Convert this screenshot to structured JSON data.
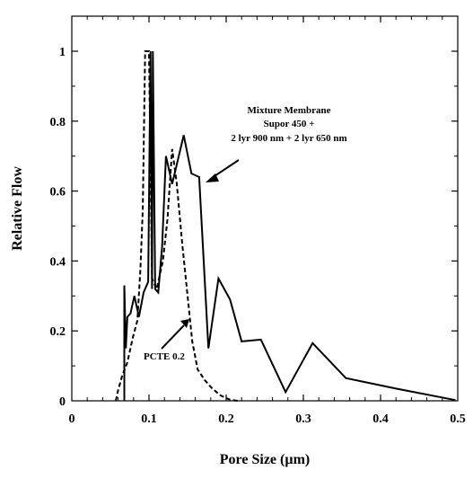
{
  "chart_data": {
    "type": "line",
    "title": "",
    "xlabel": "Pore Size (µm)",
    "ylabel": "Relative Flow",
    "xlim": [
      0,
      0.5
    ],
    "ylim": [
      0,
      1.1
    ],
    "x_ticks": [
      0,
      0.1,
      0.2,
      0.3,
      0.4,
      0.5
    ],
    "x_tick_labels": [
      "0",
      "0.1",
      "0.2",
      "0.3",
      "0.4",
      "0.5"
    ],
    "y_ticks": [
      0,
      0.2,
      0.4,
      0.6,
      0.8,
      1
    ],
    "y_tick_labels": [
      "0",
      "0.2",
      "0.4",
      "0.6",
      "0.8",
      "1"
    ],
    "grid": false,
    "legend": "none",
    "series": [
      {
        "name": "",
        "style": "solid",
        "color": "#000000",
        "points": [
          [
            0.068,
            0.0
          ],
          [
            0.068,
            0.33
          ],
          [
            0.07,
            0.15
          ],
          [
            0.072,
            0.24
          ],
          [
            0.076,
            0.25
          ],
          [
            0.081,
            0.3
          ],
          [
            0.087,
            0.24
          ],
          [
            0.093,
            0.31
          ],
          [
            0.099,
            0.34
          ],
          [
            0.102,
            1.0
          ],
          [
            0.104,
            0.32
          ],
          [
            0.105,
            1.0
          ],
          [
            0.108,
            0.32
          ],
          [
            0.112,
            0.31
          ],
          [
            0.117,
            0.44
          ],
          [
            0.122,
            0.7
          ],
          [
            0.13,
            0.62
          ],
          [
            0.145,
            0.76
          ],
          [
            0.155,
            0.65
          ],
          [
            0.165,
            0.64
          ],
          [
            0.177,
            0.15
          ],
          [
            0.19,
            0.35
          ],
          [
            0.205,
            0.29
          ],
          [
            0.22,
            0.17
          ],
          [
            0.245,
            0.175
          ],
          [
            0.277,
            0.025
          ],
          [
            0.312,
            0.165
          ],
          [
            0.355,
            0.065
          ],
          [
            0.42,
            0.035
          ],
          [
            0.497,
            0.002
          ]
        ]
      },
      {
        "name": "",
        "style": "dashed",
        "color": "#000000",
        "points": [
          [
            0.057,
            0.0
          ],
          [
            0.06,
            0.03
          ],
          [
            0.065,
            0.07
          ],
          [
            0.072,
            0.11
          ],
          [
            0.079,
            0.18
          ],
          [
            0.085,
            0.23
          ],
          [
            0.089,
            0.38
          ],
          [
            0.092,
            0.55
          ],
          [
            0.095,
            1.0
          ],
          [
            0.1,
            1.0
          ],
          [
            0.104,
            0.35
          ],
          [
            0.11,
            0.32
          ],
          [
            0.118,
            0.4
          ],
          [
            0.124,
            0.52
          ],
          [
            0.13,
            0.72
          ],
          [
            0.136,
            0.62
          ],
          [
            0.143,
            0.45
          ],
          [
            0.15,
            0.3
          ],
          [
            0.156,
            0.17
          ],
          [
            0.163,
            0.09
          ],
          [
            0.172,
            0.06
          ],
          [
            0.182,
            0.035
          ],
          [
            0.193,
            0.015
          ],
          [
            0.205,
            0.003
          ],
          [
            0.215,
            0.0
          ]
        ]
      }
    ],
    "annotations": [
      {
        "lines": [
          "Mixture Membrane",
          "Supor 450 +",
          "2 lyr 900 nm + 2 lyr 650 nm"
        ]
      },
      {
        "lines": [
          "PCTE 0.2"
        ]
      }
    ]
  }
}
